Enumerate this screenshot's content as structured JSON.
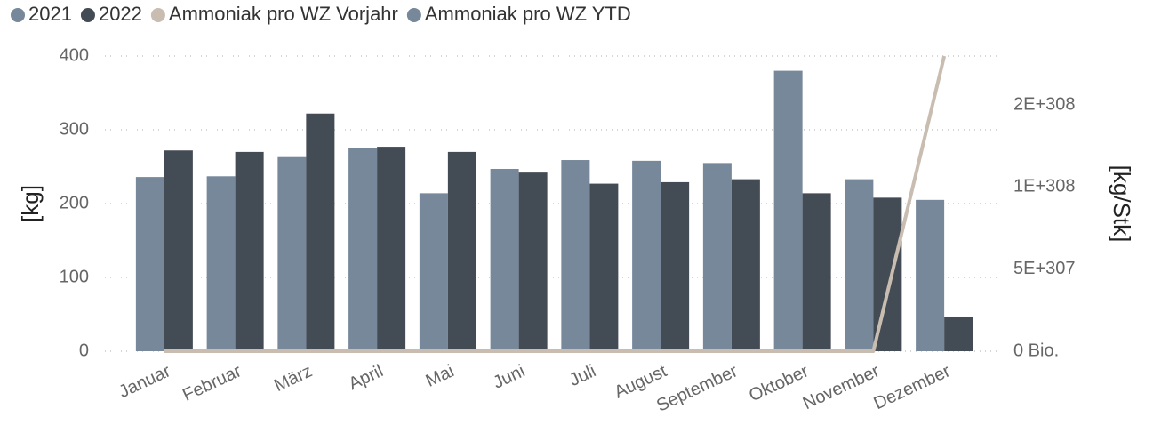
{
  "chart_data": {
    "type": "bar",
    "categories": [
      "Januar",
      "Februar",
      "März",
      "April",
      "Mai",
      "Juni",
      "Juli",
      "August",
      "September",
      "Oktober",
      "November",
      "Dezember"
    ],
    "series": [
      {
        "name": "2021",
        "color": "#76889a",
        "values": [
          236,
          237,
          263,
          275,
          214,
          247,
          259,
          258,
          255,
          380,
          233,
          205
        ]
      },
      {
        "name": "2022",
        "color": "#434b54",
        "values": [
          272,
          270,
          322,
          277,
          270,
          242,
          227,
          229,
          233,
          214,
          208,
          47
        ]
      },
      {
        "name": "Ammoniak pro WZ Vorjahr",
        "color": "#c8bdb0",
        "type": "line",
        "axis": "y2",
        "values": [
          0,
          0,
          0,
          0,
          0,
          0,
          0,
          0,
          0,
          0,
          0,
          1.7976931348623157e+308
        ]
      },
      {
        "name": "Ammoniak pro WZ YTD",
        "color": "#76889a",
        "type": "line",
        "axis": "y2",
        "values": [
          null,
          null,
          null,
          null,
          null,
          null,
          null,
          null,
          null,
          null,
          null,
          null
        ]
      }
    ],
    "ylabel": "[kg]",
    "y2label": "[kg/Stk]",
    "ylim": [
      0,
      400
    ],
    "yticks": [
      0,
      100,
      200,
      300,
      400
    ],
    "y2lim": [
      0,
      1.7976931348623157e+308
    ],
    "y2ticks": [
      {
        "value": 0,
        "label": "0 Bio."
      },
      {
        "value": 5e+307,
        "label": "5E+307"
      },
      {
        "value": 1e+308,
        "label": "1E+308"
      },
      {
        "value": 1.5e+308,
        "label": "2E+308"
      }
    ],
    "grid": true,
    "legend": "top-left"
  }
}
